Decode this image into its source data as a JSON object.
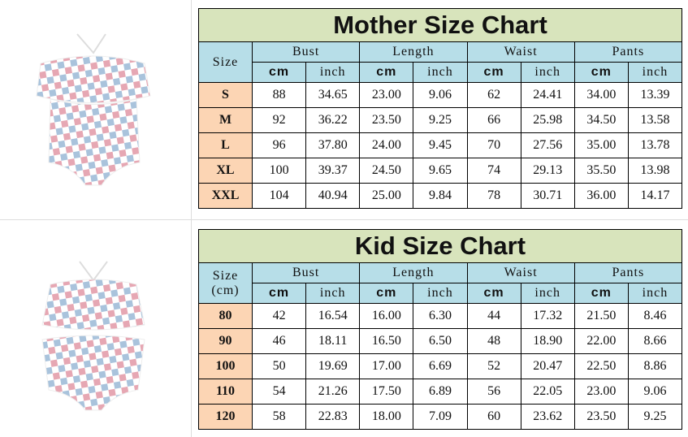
{
  "mother": {
    "title": "Mother Size Chart",
    "size_label": [
      "Size"
    ],
    "groups": [
      "Bust",
      "Length",
      "Waist",
      "Pants"
    ],
    "units": [
      "cm",
      "inch",
      "cm",
      "inch",
      "cm",
      "inch",
      "cm",
      "inch"
    ],
    "rows": [
      [
        "S",
        "88",
        "34.65",
        "23.00",
        "9.06",
        "62",
        "24.41",
        "34.00",
        "13.39"
      ],
      [
        "M",
        "92",
        "36.22",
        "23.50",
        "9.25",
        "66",
        "25.98",
        "34.50",
        "13.58"
      ],
      [
        "L",
        "96",
        "37.80",
        "24.00",
        "9.45",
        "70",
        "27.56",
        "35.00",
        "13.78"
      ],
      [
        "XL",
        "100",
        "39.37",
        "24.50",
        "9.65",
        "74",
        "29.13",
        "35.50",
        "13.98"
      ],
      [
        "XXL",
        "104",
        "40.94",
        "25.00",
        "9.84",
        "78",
        "30.71",
        "36.00",
        "14.17"
      ]
    ]
  },
  "kid": {
    "title": "Kid Size Chart",
    "size_label": [
      "Size",
      "(cm)"
    ],
    "groups": [
      "Bust",
      "Length",
      "Waist",
      "Pants"
    ],
    "units": [
      "cm",
      "inch",
      "cm",
      "inch",
      "cm",
      "inch",
      "cm",
      "inch"
    ],
    "rows": [
      [
        "80",
        "42",
        "16.54",
        "16.00",
        "6.30",
        "44",
        "17.32",
        "21.50",
        "8.46"
      ],
      [
        "90",
        "46",
        "18.11",
        "16.50",
        "6.50",
        "48",
        "18.90",
        "22.00",
        "8.66"
      ],
      [
        "100",
        "50",
        "19.69",
        "17.00",
        "6.69",
        "52",
        "20.47",
        "22.50",
        "8.86"
      ],
      [
        "110",
        "54",
        "21.26",
        "17.50",
        "6.89",
        "56",
        "22.05",
        "23.00",
        "9.06"
      ],
      [
        "120",
        "58",
        "22.83",
        "18.00",
        "7.09",
        "60",
        "23.62",
        "23.50",
        "9.25"
      ]
    ]
  }
}
